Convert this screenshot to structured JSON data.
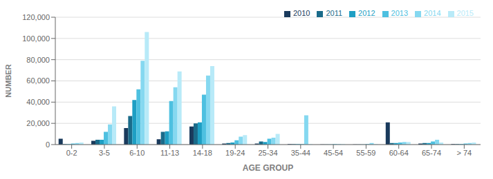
{
  "chart_data": {
    "type": "bar",
    "categories": [
      "0-2",
      "3-5",
      "6-10",
      "11-13",
      "14-18",
      "19-24",
      "25-34",
      "35-44",
      "45-54",
      "55-59",
      "60-64",
      "65-74",
      "> 74"
    ],
    "series": [
      {
        "name": "2010",
        "color": "#1a3a5c",
        "values": [
          5500,
          3500,
          15500,
          5000,
          17000,
          1000,
          1000,
          500,
          200,
          200,
          21000,
          1000,
          500
        ]
      },
      {
        "name": "2011",
        "color": "#1a6b8a",
        "values": [
          500,
          4500,
          27000,
          12000,
          20000,
          1500,
          3000,
          500,
          200,
          200,
          1500,
          1500,
          500
        ]
      },
      {
        "name": "2012",
        "color": "#1e9fc4",
        "values": [
          500,
          4500,
          42000,
          12500,
          21000,
          2000,
          2500,
          500,
          200,
          200,
          1500,
          1500,
          500
        ]
      },
      {
        "name": "2013",
        "color": "#4dc0e0",
        "values": [
          1000,
          12000,
          52000,
          41000,
          47000,
          4000,
          5500,
          500,
          500,
          500,
          2000,
          3000,
          1000
        ]
      },
      {
        "name": "2014",
        "color": "#85d8f0",
        "values": [
          1500,
          19000,
          79000,
          54000,
          65000,
          7500,
          6500,
          27500,
          500,
          1500,
          2500,
          4500,
          1500
        ]
      },
      {
        "name": "2015",
        "color": "#b8eaf8",
        "values": [
          2000,
          36000,
          106000,
          69000,
          74000,
          9000,
          10000,
          500,
          500,
          500,
          2500,
          2000,
          2000
        ]
      }
    ],
    "xlabel": "AGE GROUP",
    "ylabel": "NUMBER",
    "ylim": [
      0,
      120000
    ],
    "yticks": [
      0,
      {
        "value": 20000,
        "label": "20,000"
      },
      {
        "value": 40000,
        "label": "40,000"
      },
      {
        "value": 60000,
        "label": "60,000"
      },
      {
        "value": 80000,
        "label": "80,000"
      },
      {
        "value": 100000,
        "label": "100,000"
      },
      {
        "value": 120000,
        "label": "120,000"
      }
    ],
    "grid": true,
    "legend": "top right"
  }
}
